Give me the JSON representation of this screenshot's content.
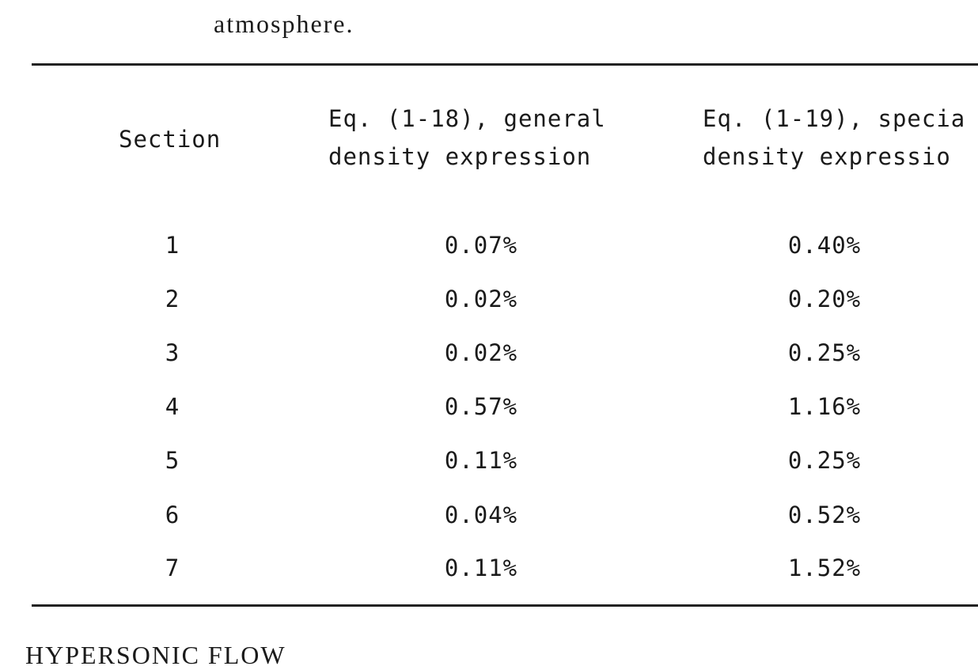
{
  "header": {
    "text": "atmosphere."
  },
  "table": {
    "columns": [
      [
        "Section"
      ],
      [
        "Eq. (1-18), general",
        "density expression"
      ],
      [
        "Eq. (1-19), specia",
        "density expressio"
      ]
    ],
    "rows": [
      [
        "1",
        "0.07%",
        "0.40%"
      ],
      [
        "2",
        "0.02%",
        "0.20%"
      ],
      [
        "3",
        "0.02%",
        "0.25%"
      ],
      [
        "4",
        "0.57%",
        "1.16%"
      ],
      [
        "5",
        "0.11%",
        "0.25%"
      ],
      [
        "6",
        "0.04%",
        "0.52%"
      ],
      [
        "7",
        "0.11%",
        "1.52%"
      ]
    ]
  },
  "footer": {
    "text": "HYPERSONIC FLOW"
  }
}
